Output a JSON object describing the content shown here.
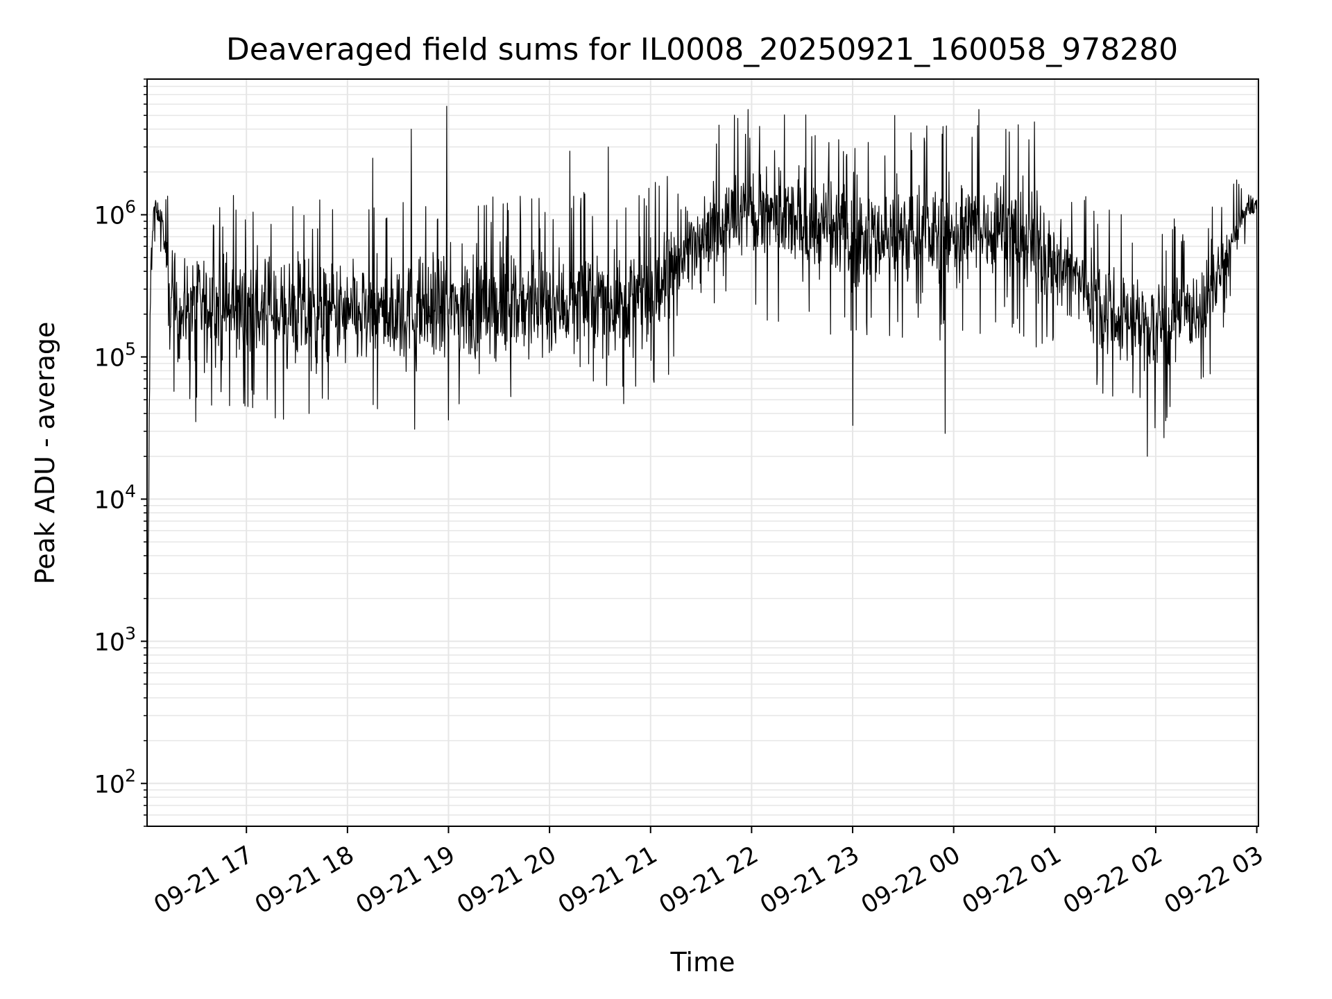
{
  "chart_data": {
    "type": "line",
    "title": "Deaveraged field sums for IL0008_20250921_160058_978280",
    "xlabel": "Time",
    "ylabel": "Peak ADU - average",
    "yscale": "log",
    "ylim": [
      50,
      9000000
    ],
    "xlim": [
      "2025-09-21 16:01",
      "2025-09-22 03:01"
    ],
    "grid": true,
    "line_color": "#000000",
    "grid_color": "#e6e6e6",
    "x_ticks": [
      {
        "t": "2025-09-21 17:00",
        "label": "09-21 17"
      },
      {
        "t": "2025-09-21 18:00",
        "label": "09-21 18"
      },
      {
        "t": "2025-09-21 19:00",
        "label": "09-21 19"
      },
      {
        "t": "2025-09-21 20:00",
        "label": "09-21 20"
      },
      {
        "t": "2025-09-21 21:00",
        "label": "09-21 21"
      },
      {
        "t": "2025-09-21 22:00",
        "label": "09-21 22"
      },
      {
        "t": "2025-09-21 23:00",
        "label": "09-21 23"
      },
      {
        "t": "2025-09-22 00:00",
        "label": "09-22 00"
      },
      {
        "t": "2025-09-22 01:00",
        "label": "09-22 01"
      },
      {
        "t": "2025-09-22 02:00",
        "label": "09-22 02"
      },
      {
        "t": "2025-09-22 03:00",
        "label": "09-22 03"
      }
    ],
    "y_ticks": [
      {
        "value": 100,
        "base": "10",
        "exp": "2"
      },
      {
        "value": 1000,
        "base": "10",
        "exp": "3"
      },
      {
        "value": 10000,
        "base": "10",
        "exp": "4"
      },
      {
        "value": 100000,
        "base": "10",
        "exp": "5"
      },
      {
        "value": 1000000,
        "base": "10",
        "exp": "6"
      }
    ],
    "series_envelope": [
      {
        "t": "2025-09-21 16:01",
        "low": 200,
        "high": 200
      },
      {
        "t": "2025-09-21 16:03",
        "low": 120000,
        "high": 1300000
      },
      {
        "t": "2025-09-21 16:05",
        "low": 900000,
        "high": 1500000
      },
      {
        "t": "2025-09-21 16:10",
        "low": 700000,
        "high": 1200000
      },
      {
        "t": "2025-09-21 16:15",
        "low": 60000,
        "high": 800000
      },
      {
        "t": "2025-09-21 17:00",
        "low": 60000,
        "high": 800000
      },
      {
        "t": "2025-09-21 18:00",
        "low": 50000,
        "high": 700000
      },
      {
        "t": "2025-09-21 19:00",
        "low": 60000,
        "high": 800000
      },
      {
        "t": "2025-09-21 20:00",
        "low": 70000,
        "high": 800000
      },
      {
        "t": "2025-09-21 21:00",
        "low": 70000,
        "high": 900000
      },
      {
        "t": "2025-09-21 21:30",
        "low": 300000,
        "high": 2000000
      },
      {
        "t": "2025-09-21 22:00",
        "low": 300000,
        "high": 3500000
      },
      {
        "t": "2025-09-21 23:00",
        "low": 200000,
        "high": 2500000
      },
      {
        "t": "2025-09-22 00:00",
        "low": 200000,
        "high": 2500000
      },
      {
        "t": "2025-09-22 00:30",
        "low": 250000,
        "high": 3000000
      },
      {
        "t": "2025-09-22 01:00",
        "low": 150000,
        "high": 1500000
      },
      {
        "t": "2025-09-22 01:40",
        "low": 60000,
        "high": 600000
      },
      {
        "t": "2025-09-22 02:00",
        "low": 50000,
        "high": 500000
      },
      {
        "t": "2025-09-22 02:30",
        "low": 90000,
        "high": 600000
      },
      {
        "t": "2025-09-22 02:55",
        "low": 1000000,
        "high": 1400000
      },
      {
        "t": "2025-09-22 03:00",
        "low": 1000000,
        "high": 1300000
      },
      {
        "t": "2025-09-22 03:01",
        "low": 60,
        "high": 60
      }
    ],
    "spikes_high": [
      {
        "t": "2025-09-21 18:15",
        "value": 2500000
      },
      {
        "t": "2025-09-21 18:38",
        "value": 4000000
      },
      {
        "t": "2025-09-21 18:59",
        "value": 5800000
      },
      {
        "t": "2025-09-21 20:12",
        "value": 2800000
      },
      {
        "t": "2025-09-21 20:35",
        "value": 3000000
      },
      {
        "t": "2025-09-21 21:58",
        "value": 5500000
      },
      {
        "t": "2025-09-21 23:25",
        "value": 5000000
      },
      {
        "t": "2025-09-22 00:15",
        "value": 5500000
      },
      {
        "t": "2025-09-22 00:48",
        "value": 4500000
      }
    ],
    "spikes_low": [
      {
        "t": "2025-09-21 16:30",
        "value": 35000
      },
      {
        "t": "2025-09-21 18:40",
        "value": 31000
      },
      {
        "t": "2025-09-21 19:00",
        "value": 36000
      },
      {
        "t": "2025-09-21 23:00",
        "value": 33000
      },
      {
        "t": "2025-09-21 23:55",
        "value": 29000
      },
      {
        "t": "2025-09-22 01:55",
        "value": 20000
      },
      {
        "t": "2025-09-22 02:05",
        "value": 27000
      }
    ]
  }
}
